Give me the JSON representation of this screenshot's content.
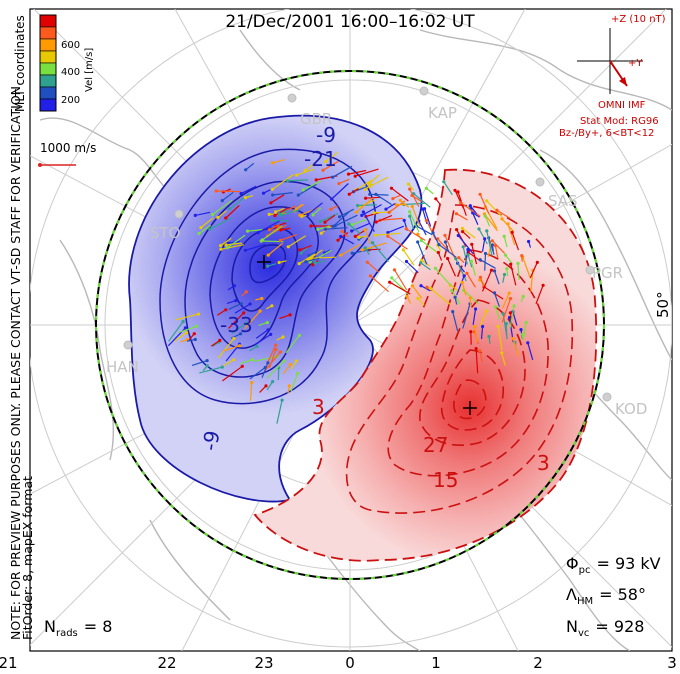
{
  "title": "21/Dec/2001  16:00–16:02 UT",
  "note": {
    "line1": "NOTE: FOR PREVIEW PURPOSES ONLY. PLEASE CONTACT VT-SD STAFF FOR VERIFICATION.",
    "line2": "FitOrder: 8, mapEX format"
  },
  "coord_label": "MLT coordinates",
  "colorbar": {
    "label": "Vel [m/s]",
    "ticks": [
      "600",
      "400",
      "200"
    ],
    "colors": [
      "#e00000",
      "#ff5a1e",
      "#ff9a00",
      "#e8c800",
      "#78e040",
      "#30a090",
      "#2050c0",
      "#2020e8"
    ]
  },
  "ref_vector": {
    "label": "1000 m/s"
  },
  "imf": {
    "z_label": "+Z (10 nT)",
    "y_label": "+Y",
    "source": "OMNI IMF",
    "model": "Stat Mod: RG96",
    "condition": "Bz-/By+, 6<BT<12"
  },
  "stations": [
    "GBR",
    "KAP",
    "SAS",
    "PGR",
    "KOD",
    "STO",
    "HAN"
  ],
  "latitude_label": "50°",
  "contour_labels": {
    "neg": [
      "-9",
      "-21",
      "-33",
      "-9"
    ],
    "pos": [
      "3",
      "27",
      "15",
      "3"
    ]
  },
  "stats": {
    "phi_sym": "Φ",
    "phi_sub": "pc",
    "phi_value": "= 93 kV",
    "lambda_sym": "Λ",
    "lambda_sub": "HM",
    "lambda_value": "= 58°",
    "nvc_sym": "N",
    "nvc_sub": "vc",
    "nvc_value": "= 928"
  },
  "nrads": {
    "sym": "N",
    "sub": "rads",
    "value": "= 8"
  },
  "mlt_ticks": [
    "21",
    "22",
    "23",
    "0",
    "1",
    "2",
    "3"
  ],
  "colors": {
    "negative": "#1a1aa8",
    "positive": "#cc1010",
    "hmb": "#000000",
    "hmb_dash": "#66dd33",
    "land": "#bbbbbb"
  }
}
